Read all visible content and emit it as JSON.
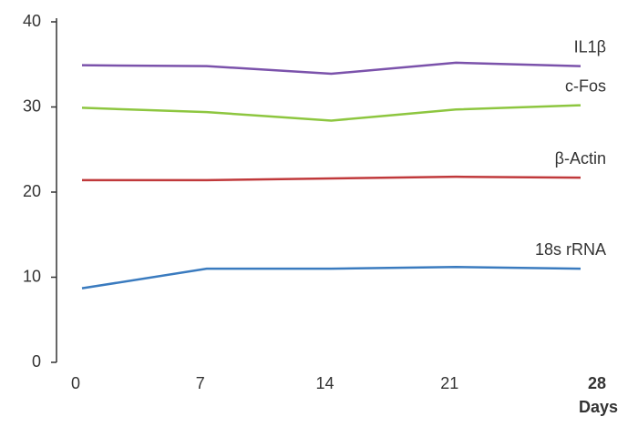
{
  "chart_data": {
    "type": "line",
    "x": [
      0,
      7,
      14,
      21,
      28
    ],
    "xlim": [
      0,
      28
    ],
    "xticks": [
      0,
      7,
      14,
      21,
      28
    ],
    "ylim": [
      0,
      40
    ],
    "yticks": [
      0,
      10,
      20,
      30,
      40
    ],
    "x_label": "Days",
    "series": [
      {
        "name": "IL1β",
        "color": "#7b52ab",
        "values": [
          34.9,
          34.8,
          33.9,
          35.2,
          34.8
        ]
      },
      {
        "name": "c-Fos",
        "color": "#8dc63f",
        "values": [
          29.9,
          29.4,
          28.4,
          29.7,
          30.2
        ]
      },
      {
        "name": "β-Actin",
        "color": "#c0393b",
        "values": [
          21.4,
          21.4,
          21.6,
          21.8,
          21.7
        ]
      },
      {
        "name": "18s rRNA",
        "color": "#3a7bbf",
        "values": [
          8.7,
          11.0,
          11.0,
          11.2,
          11.0
        ]
      }
    ]
  }
}
